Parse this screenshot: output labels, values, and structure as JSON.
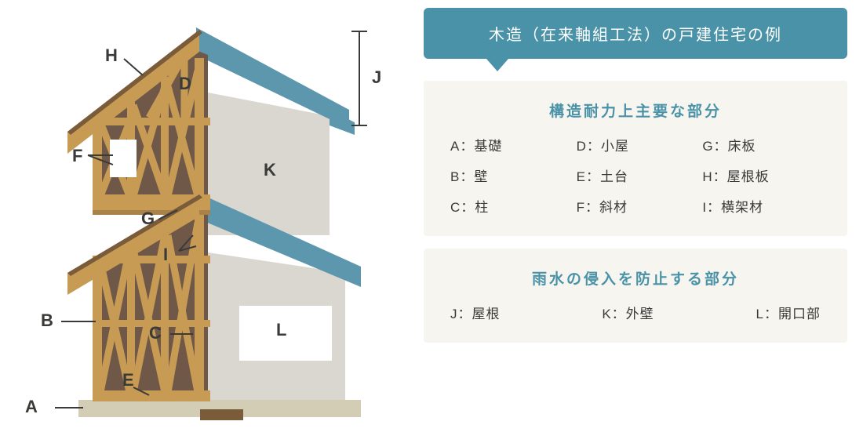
{
  "banner": {
    "text": "木造（在来軸組工法）の戸建住宅の例"
  },
  "panel1": {
    "title": "構造耐力上主要な部分",
    "items": [
      {
        "k": "A",
        "v": "基礎"
      },
      {
        "k": "D",
        "v": "小屋"
      },
      {
        "k": "G",
        "v": "床板"
      },
      {
        "k": "B",
        "v": "壁"
      },
      {
        "k": "E",
        "v": "土台"
      },
      {
        "k": "H",
        "v": "屋根板"
      },
      {
        "k": "C",
        "v": "柱"
      },
      {
        "k": "F",
        "v": "斜材"
      },
      {
        "k": "I",
        "v": "横架材"
      }
    ]
  },
  "panel2": {
    "title": "雨水の侵入を防止する部分",
    "items": [
      {
        "k": "J",
        "v": "屋根"
      },
      {
        "k": "K",
        "v": "外壁"
      },
      {
        "k": "L",
        "v": "開口部"
      }
    ]
  },
  "diagram": {
    "labels": {
      "A": "A",
      "B": "B",
      "C": "C",
      "D": "D",
      "E": "E",
      "F": "F",
      "G": "G",
      "H": "H",
      "I": "I",
      "J": "J",
      "K": "K",
      "L": "L"
    }
  },
  "colors": {
    "accent": "#4a92a7",
    "panel_bg": "#f6f5ef",
    "wood": "#c79b54",
    "wood_dark": "#7a5b3a",
    "wall_inner": "#6f5847",
    "wall_outer": "#d9d7cf",
    "roof_blue": "#5d97ae",
    "foundation": "#d4cdb6",
    "text": "#3a3a38"
  }
}
